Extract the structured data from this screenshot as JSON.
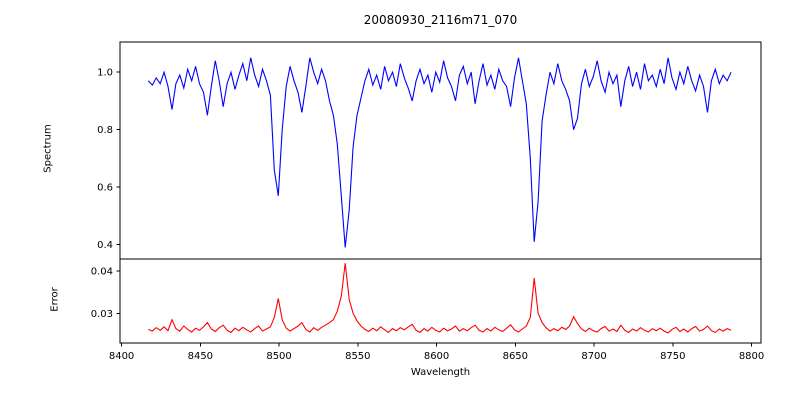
{
  "figure": {
    "background": "#ffffff",
    "frame_color": "#000000"
  },
  "chart_data": [
    {
      "type": "line",
      "title": "20080930_2116m71_070",
      "ylabel": "Spectrum",
      "xlim": [
        8399,
        8806
      ],
      "ylim": [
        0.35,
        1.105
      ],
      "ytick_values": [
        1.0,
        0.8,
        0.6,
        0.4
      ],
      "ytick_labels": [
        "1.0",
        "0.8",
        "0.6",
        "0.4"
      ],
      "legend": "none",
      "grid": false,
      "annotations": [
        "absorption lines near 8498, 8542, 8662"
      ],
      "series": [
        {
          "name": "spectrum",
          "color": "#0000ff",
          "x_start": 8417,
          "x_step": 2.5,
          "values": [
            0.97,
            0.955,
            0.98,
            0.96,
            1.0,
            0.95,
            0.87,
            0.96,
            0.99,
            0.945,
            1.01,
            0.97,
            1.02,
            0.96,
            0.93,
            0.85,
            0.95,
            1.04,
            0.97,
            0.88,
            0.96,
            1.0,
            0.94,
            0.99,
            1.03,
            0.97,
            1.05,
            0.99,
            0.95,
            1.01,
            0.97,
            0.92,
            0.66,
            0.57,
            0.8,
            0.95,
            1.02,
            0.97,
            0.93,
            0.86,
            0.95,
            1.05,
            1.0,
            0.96,
            1.01,
            0.97,
            0.9,
            0.85,
            0.75,
            0.57,
            0.39,
            0.52,
            0.74,
            0.85,
            0.91,
            0.97,
            1.01,
            0.955,
            0.99,
            0.94,
            1.02,
            0.97,
            1.0,
            0.95,
            1.03,
            0.98,
            0.945,
            0.9,
            0.97,
            1.01,
            0.96,
            0.99,
            0.93,
            1.0,
            0.965,
            1.04,
            0.98,
            0.95,
            0.9,
            0.99,
            1.02,
            0.96,
            1.0,
            0.89,
            0.97,
            1.03,
            0.955,
            0.99,
            0.94,
            1.01,
            0.97,
            0.95,
            0.88,
            0.98,
            1.05,
            0.97,
            0.89,
            0.7,
            0.41,
            0.55,
            0.83,
            0.92,
            1.0,
            0.96,
            1.03,
            0.97,
            0.94,
            0.9,
            0.8,
            0.84,
            0.96,
            1.01,
            0.95,
            0.985,
            1.04,
            0.97,
            0.93,
            1.0,
            0.96,
            0.99,
            0.88,
            0.97,
            1.02,
            0.95,
            1.0,
            0.94,
            1.03,
            0.97,
            0.99,
            0.95,
            1.01,
            0.96,
            1.05,
            0.98,
            0.94,
            1.0,
            0.96,
            1.02,
            0.97,
            0.935,
            0.99,
            0.95,
            0.86,
            0.97,
            1.01,
            0.96,
            0.99,
            0.97,
            1.0
          ]
        }
      ]
    },
    {
      "type": "line",
      "ylabel": "Error",
      "xlabel": "Wavelength",
      "xlim": [
        8399,
        8806
      ],
      "ylim": [
        0.023,
        0.0428
      ],
      "ytick_values": [
        0.04,
        0.03
      ],
      "ytick_labels": [
        "0.04",
        "0.03"
      ],
      "xtick_values": [
        8400,
        8450,
        8500,
        8550,
        8600,
        8650,
        8700,
        8750,
        8800
      ],
      "xtick_labels": [
        "8400",
        "8450",
        "8500",
        "8550",
        "8600",
        "8650",
        "8700",
        "8750",
        "8800"
      ],
      "legend": "none",
      "grid": false,
      "annotations": [
        "error peaks near 8498, 8542, 8662"
      ],
      "series": [
        {
          "name": "error",
          "color": "#ff0000",
          "x_start": 8417,
          "x_step": 2.5,
          "values": [
            0.0262,
            0.0258,
            0.0266,
            0.026,
            0.0268,
            0.0259,
            0.0285,
            0.0264,
            0.0258,
            0.027,
            0.0262,
            0.0256,
            0.0265,
            0.026,
            0.0268,
            0.0278,
            0.0263,
            0.0257,
            0.0266,
            0.0272,
            0.026,
            0.0255,
            0.0265,
            0.0259,
            0.0267,
            0.0261,
            0.0256,
            0.0264,
            0.027,
            0.0258,
            0.0263,
            0.0268,
            0.029,
            0.0335,
            0.0285,
            0.0265,
            0.0258,
            0.0264,
            0.027,
            0.0278,
            0.0262,
            0.0256,
            0.0266,
            0.026,
            0.0267,
            0.0272,
            0.0278,
            0.0285,
            0.0305,
            0.034,
            0.0418,
            0.0332,
            0.03,
            0.0282,
            0.027,
            0.0262,
            0.0257,
            0.0265,
            0.0259,
            0.0268,
            0.0261,
            0.0255,
            0.0264,
            0.0259,
            0.0266,
            0.0261,
            0.0268,
            0.0274,
            0.026,
            0.0255,
            0.0264,
            0.0258,
            0.0267,
            0.026,
            0.0256,
            0.0265,
            0.0259,
            0.0263,
            0.027,
            0.0258,
            0.0264,
            0.0259,
            0.0266,
            0.0272,
            0.026,
            0.0256,
            0.0264,
            0.0258,
            0.0267,
            0.0261,
            0.0257,
            0.0265,
            0.0273,
            0.0261,
            0.0256,
            0.0263,
            0.027,
            0.029,
            0.0383,
            0.03,
            0.0278,
            0.0266,
            0.0258,
            0.0264,
            0.0259,
            0.0267,
            0.0262,
            0.027,
            0.0292,
            0.0276,
            0.0263,
            0.0257,
            0.0265,
            0.0259,
            0.0256,
            0.0264,
            0.0269,
            0.0258,
            0.0263,
            0.0257,
            0.0272,
            0.026,
            0.0255,
            0.0263,
            0.0258,
            0.0266,
            0.026,
            0.0256,
            0.0264,
            0.0259,
            0.0265,
            0.0258,
            0.0254,
            0.0262,
            0.0267,
            0.0257,
            0.0263,
            0.0256,
            0.0264,
            0.0269,
            0.0258,
            0.0262,
            0.027,
            0.0259,
            0.0255,
            0.0263,
            0.0258,
            0.0264,
            0.026
          ]
        }
      ]
    }
  ]
}
